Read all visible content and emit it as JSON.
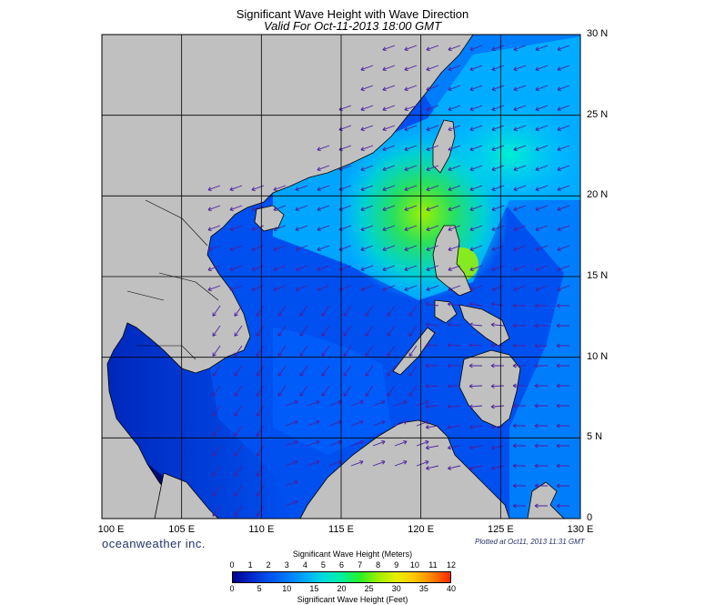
{
  "title": "Significant Wave Height with Wave Direction",
  "subtitle": "Valid For Oct-11-2013 18:00 GMT",
  "map": {
    "region": "South China Sea / Philippines",
    "lon_range": [
      100,
      130
    ],
    "lat_range": [
      0,
      30
    ],
    "lat_labels": [
      "30 N",
      "25 N",
      "20 N",
      "15 N",
      "10 N",
      "5 N",
      "0"
    ],
    "lon_labels": [
      "100 E",
      "105 E",
      "110 E",
      "115 E",
      "120 E",
      "125 E",
      "130 E"
    ],
    "land_color": "#c0c0c0",
    "grid_color": "#000000",
    "arrow_color": "#4b1fa0"
  },
  "brand": "oceanweather inc.",
  "plotted": "Plotted at Oct11, 2013 11:31 GMT",
  "colorbar": {
    "title_top": "Significant Wave Height (Meters)",
    "title_bottom": "Significant Wave Height (Feet)",
    "meters": [
      "0",
      "1",
      "2",
      "3",
      "4",
      "5",
      "6",
      "7",
      "8",
      "9",
      "10",
      "11",
      "12"
    ],
    "feet": [
      "0",
      "5",
      "10",
      "15",
      "20",
      "25",
      "30",
      "35",
      "40"
    ],
    "colors": [
      "#00008c",
      "#0028c8",
      "#0050f0",
      "#0078ff",
      "#00aaff",
      "#00dcdc",
      "#00f0a0",
      "#28f028",
      "#9cf000",
      "#e6f000",
      "#ffc800",
      "#ff8200",
      "#ff2800"
    ]
  }
}
